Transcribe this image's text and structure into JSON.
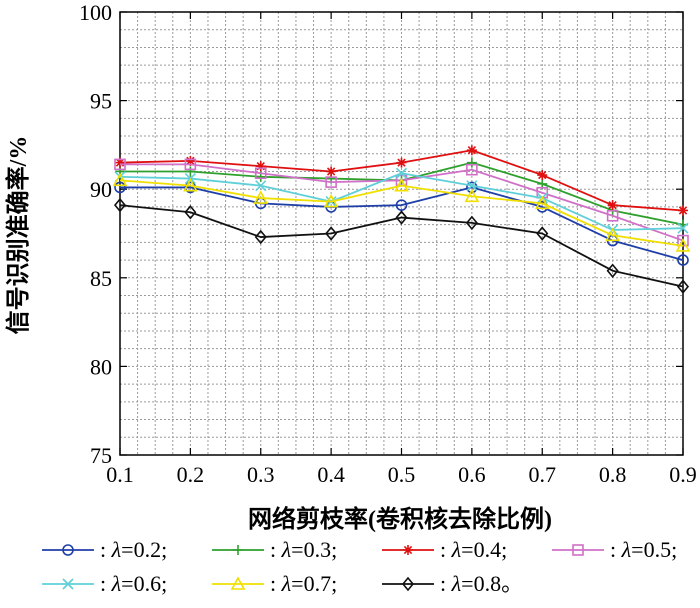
{
  "chart_data": {
    "type": "line",
    "xlabel": "网络剪枝率(卷积核去除比例)",
    "ylabel": "信号识别准确率/%",
    "x": [
      0.1,
      0.2,
      0.3,
      0.4,
      0.5,
      0.6,
      0.7,
      0.8,
      0.9
    ],
    "x_tick_labels": [
      "0.1",
      "0.2",
      "0.3",
      "0.4",
      "0.5",
      "0.6",
      "0.7",
      "0.8",
      "0.9"
    ],
    "y_tick_labels": [
      "75",
      "80",
      "85",
      "90",
      "95",
      "100"
    ],
    "xlim": [
      0.1,
      0.9
    ],
    "ylim": [
      75,
      100
    ],
    "grid": true,
    "legend_position": "bottom",
    "series": [
      {
        "name": ": λ=0.2;",
        "lambda_symbol": "λ",
        "lambda_value": "=0.2;",
        "color": "#1f3fa8",
        "marker": "circle",
        "values": [
          90.1,
          90.1,
          89.2,
          89.0,
          89.1,
          90.1,
          89.0,
          87.1,
          86.0
        ]
      },
      {
        "name": ": λ=0.3;",
        "lambda_symbol": "λ",
        "lambda_value": "=0.3;",
        "color": "#2ea02c",
        "marker": "plus",
        "values": [
          91.0,
          91.0,
          90.7,
          90.6,
          90.5,
          91.5,
          90.3,
          88.8,
          88.0
        ]
      },
      {
        "name": ": λ=0.4;",
        "lambda_symbol": "λ",
        "lambda_value": "=0.4;",
        "color": "#e01010",
        "marker": "asterisk",
        "values": [
          91.5,
          91.6,
          91.3,
          91.0,
          91.5,
          92.2,
          90.8,
          89.1,
          88.8
        ]
      },
      {
        "name": ": λ=0.5;",
        "lambda_symbol": "λ",
        "lambda_value": "=0.5;",
        "color": "#d070c8",
        "marker": "square",
        "values": [
          91.4,
          91.4,
          90.9,
          90.4,
          90.5,
          91.1,
          89.8,
          88.5,
          87.1
        ]
      },
      {
        "name": ": λ=0.6;",
        "lambda_symbol": "λ",
        "lambda_value": "=0.6;",
        "color": "#5fd0d8",
        "marker": "x",
        "values": [
          90.7,
          90.6,
          90.2,
          89.3,
          90.9,
          90.2,
          89.5,
          87.7,
          87.8
        ]
      },
      {
        "name": ": λ=0.7;",
        "lambda_symbol": "λ",
        "lambda_value": "=0.7;",
        "color": "#f0e000",
        "marker": "triangle",
        "values": [
          90.5,
          90.2,
          89.5,
          89.3,
          90.2,
          89.6,
          89.2,
          87.4,
          86.8
        ]
      },
      {
        "name": ": λ=0.8。",
        "lambda_symbol": "λ",
        "lambda_value": "=0.8。",
        "color": "#111111",
        "marker": "diamond",
        "values": [
          89.1,
          88.7,
          87.3,
          87.5,
          88.4,
          88.1,
          87.5,
          85.4,
          84.5
        ]
      }
    ]
  }
}
